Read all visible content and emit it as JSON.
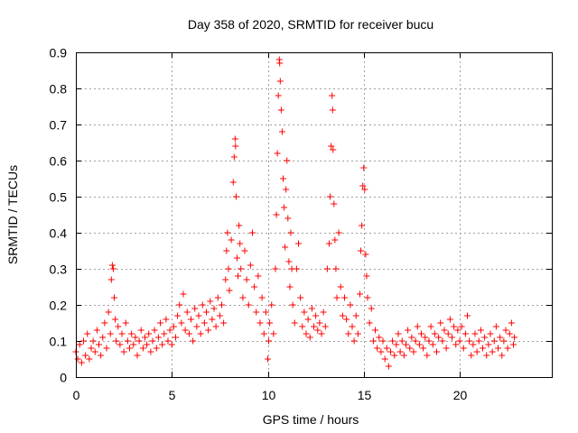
{
  "chart_data": {
    "type": "scatter",
    "title": "Day 358 of 2020, SRMTID for receiver bucu",
    "xlabel": "GPS time / hours",
    "ylabel": "SRMTID / TECUs",
    "xlim": [
      0,
      24.8
    ],
    "ylim": [
      0,
      0.9
    ],
    "xticks": [
      0,
      5,
      10,
      15,
      20
    ],
    "xtick_labels": [
      "0",
      "5",
      "10",
      "15",
      "20"
    ],
    "yticks": [
      0,
      0.1,
      0.2,
      0.3,
      0.4,
      0.5,
      0.6,
      0.7,
      0.8,
      0.9
    ],
    "ytick_labels": [
      "0",
      "0.1",
      "0.2",
      "0.3",
      "0.4",
      "0.5",
      "0.6",
      "0.7",
      "0.8",
      "0.9"
    ],
    "grid": true,
    "marker": "+",
    "color": "#ff0000",
    "series": [
      {
        "name": "SRMTID",
        "points": [
          [
            0.0,
            0.07
          ],
          [
            0.1,
            0.05
          ],
          [
            0.2,
            0.09
          ],
          [
            0.3,
            0.04
          ],
          [
            0.4,
            0.1
          ],
          [
            0.5,
            0.06
          ],
          [
            0.6,
            0.12
          ],
          [
            0.7,
            0.05
          ],
          [
            0.8,
            0.08
          ],
          [
            0.9,
            0.1
          ],
          [
            1.0,
            0.07
          ],
          [
            1.1,
            0.13
          ],
          [
            1.2,
            0.09
          ],
          [
            1.3,
            0.06
          ],
          [
            1.4,
            0.11
          ],
          [
            1.5,
            0.15
          ],
          [
            1.6,
            0.08
          ],
          [
            1.7,
            0.18
          ],
          [
            1.8,
            0.12
          ],
          [
            1.85,
            0.27
          ],
          [
            1.9,
            0.31
          ],
          [
            1.95,
            0.3
          ],
          [
            2.0,
            0.22
          ],
          [
            2.05,
            0.16
          ],
          [
            2.1,
            0.1
          ],
          [
            2.2,
            0.14
          ],
          [
            2.3,
            0.09
          ],
          [
            2.4,
            0.12
          ],
          [
            2.5,
            0.07
          ],
          [
            2.6,
            0.15
          ],
          [
            2.7,
            0.1
          ],
          [
            2.8,
            0.08
          ],
          [
            2.9,
            0.12
          ],
          [
            3.0,
            0.09
          ],
          [
            3.1,
            0.11
          ],
          [
            3.2,
            0.06
          ],
          [
            3.3,
            0.1
          ],
          [
            3.4,
            0.13
          ],
          [
            3.5,
            0.08
          ],
          [
            3.6,
            0.11
          ],
          [
            3.7,
            0.09
          ],
          [
            3.8,
            0.12
          ],
          [
            3.9,
            0.07
          ],
          [
            4.0,
            0.1
          ],
          [
            4.1,
            0.13
          ],
          [
            4.2,
            0.08
          ],
          [
            4.3,
            0.11
          ],
          [
            4.4,
            0.15
          ],
          [
            4.5,
            0.09
          ],
          [
            4.6,
            0.12
          ],
          [
            4.7,
            0.16
          ],
          [
            4.8,
            0.1
          ],
          [
            4.9,
            0.13
          ],
          [
            5.0,
            0.09
          ],
          [
            5.1,
            0.14
          ],
          [
            5.2,
            0.11
          ],
          [
            5.3,
            0.17
          ],
          [
            5.4,
            0.2
          ],
          [
            5.5,
            0.15
          ],
          [
            5.6,
            0.23
          ],
          [
            5.7,
            0.13
          ],
          [
            5.8,
            0.18
          ],
          [
            5.9,
            0.12
          ],
          [
            6.0,
            0.16
          ],
          [
            6.1,
            0.1
          ],
          [
            6.2,
            0.19
          ],
          [
            6.3,
            0.14
          ],
          [
            6.4,
            0.17
          ],
          [
            6.5,
            0.12
          ],
          [
            6.6,
            0.2
          ],
          [
            6.7,
            0.15
          ],
          [
            6.8,
            0.18
          ],
          [
            6.9,
            0.13
          ],
          [
            7.0,
            0.21
          ],
          [
            7.1,
            0.16
          ],
          [
            7.2,
            0.19
          ],
          [
            7.3,
            0.14
          ],
          [
            7.4,
            0.22
          ],
          [
            7.5,
            0.17
          ],
          [
            7.6,
            0.2
          ],
          [
            7.7,
            0.15
          ],
          [
            7.8,
            0.27
          ],
          [
            7.85,
            0.35
          ],
          [
            7.9,
            0.4
          ],
          [
            7.95,
            0.3
          ],
          [
            8.0,
            0.24
          ],
          [
            8.1,
            0.38
          ],
          [
            8.2,
            0.54
          ],
          [
            8.25,
            0.61
          ],
          [
            8.3,
            0.66
          ],
          [
            8.32,
            0.64
          ],
          [
            8.35,
            0.5
          ],
          [
            8.4,
            0.33
          ],
          [
            8.45,
            0.28
          ],
          [
            8.5,
            0.42
          ],
          [
            8.55,
            0.37
          ],
          [
            8.6,
            0.3
          ],
          [
            8.7,
            0.22
          ],
          [
            8.8,
            0.35
          ],
          [
            8.9,
            0.27
          ],
          [
            9.0,
            0.2
          ],
          [
            9.1,
            0.31
          ],
          [
            9.2,
            0.4
          ],
          [
            9.3,
            0.25
          ],
          [
            9.4,
            0.18
          ],
          [
            9.5,
            0.28
          ],
          [
            9.6,
            0.15
          ],
          [
            9.7,
            0.22
          ],
          [
            9.8,
            0.12
          ],
          [
            9.9,
            0.18
          ],
          [
            10.0,
            0.05
          ],
          [
            10.05,
            0.1
          ],
          [
            10.1,
            0.15
          ],
          [
            10.2,
            0.2
          ],
          [
            10.3,
            0.12
          ],
          [
            10.4,
            0.3
          ],
          [
            10.45,
            0.45
          ],
          [
            10.5,
            0.62
          ],
          [
            10.55,
            0.78
          ],
          [
            10.6,
            0.88
          ],
          [
            10.62,
            0.87
          ],
          [
            10.65,
            0.82
          ],
          [
            10.7,
            0.74
          ],
          [
            10.75,
            0.68
          ],
          [
            10.8,
            0.55
          ],
          [
            10.85,
            0.47
          ],
          [
            10.9,
            0.36
          ],
          [
            10.95,
            0.52
          ],
          [
            11.0,
            0.6
          ],
          [
            11.05,
            0.44
          ],
          [
            11.1,
            0.32
          ],
          [
            11.15,
            0.25
          ],
          [
            11.2,
            0.4
          ],
          [
            11.25,
            0.3
          ],
          [
            11.3,
            0.2
          ],
          [
            11.4,
            0.15
          ],
          [
            11.5,
            0.3
          ],
          [
            11.6,
            0.37
          ],
          [
            11.7,
            0.22
          ],
          [
            11.8,
            0.14
          ],
          [
            11.9,
            0.18
          ],
          [
            12.0,
            0.12
          ],
          [
            12.1,
            0.16
          ],
          [
            12.2,
            0.11
          ],
          [
            12.3,
            0.19
          ],
          [
            12.4,
            0.14
          ],
          [
            12.5,
            0.17
          ],
          [
            12.6,
            0.13
          ],
          [
            12.7,
            0.15
          ],
          [
            12.8,
            0.12
          ],
          [
            12.9,
            0.18
          ],
          [
            13.0,
            0.14
          ],
          [
            13.1,
            0.3
          ],
          [
            13.2,
            0.37
          ],
          [
            13.25,
            0.5
          ],
          [
            13.3,
            0.64
          ],
          [
            13.35,
            0.78
          ],
          [
            13.38,
            0.74
          ],
          [
            13.4,
            0.63
          ],
          [
            13.45,
            0.48
          ],
          [
            13.5,
            0.38
          ],
          [
            13.55,
            0.3
          ],
          [
            13.6,
            0.22
          ],
          [
            13.7,
            0.4
          ],
          [
            13.8,
            0.25
          ],
          [
            13.9,
            0.17
          ],
          [
            14.0,
            0.22
          ],
          [
            14.1,
            0.16
          ],
          [
            14.2,
            0.12
          ],
          [
            14.3,
            0.2
          ],
          [
            14.4,
            0.14
          ],
          [
            14.5,
            0.1
          ],
          [
            14.6,
            0.17
          ],
          [
            14.7,
            0.12
          ],
          [
            14.8,
            0.23
          ],
          [
            14.85,
            0.35
          ],
          [
            14.9,
            0.42
          ],
          [
            14.95,
            0.53
          ],
          [
            15.0,
            0.58
          ],
          [
            15.05,
            0.52
          ],
          [
            15.1,
            0.34
          ],
          [
            15.15,
            0.28
          ],
          [
            15.2,
            0.22
          ],
          [
            15.3,
            0.15
          ],
          [
            15.4,
            0.19
          ],
          [
            15.5,
            0.1
          ],
          [
            15.6,
            0.13
          ],
          [
            15.7,
            0.08
          ],
          [
            15.8,
            0.11
          ],
          [
            15.9,
            0.07
          ],
          [
            16.0,
            0.1
          ],
          [
            16.1,
            0.05
          ],
          [
            16.2,
            0.08
          ],
          [
            16.3,
            0.03
          ],
          [
            16.4,
            0.07
          ],
          [
            16.5,
            0.1
          ],
          [
            16.6,
            0.06
          ],
          [
            16.7,
            0.09
          ],
          [
            16.8,
            0.12
          ],
          [
            16.9,
            0.07
          ],
          [
            17.0,
            0.1
          ],
          [
            17.1,
            0.06
          ],
          [
            17.2,
            0.09
          ],
          [
            17.3,
            0.13
          ],
          [
            17.4,
            0.08
          ],
          [
            17.5,
            0.11
          ],
          [
            17.6,
            0.07
          ],
          [
            17.7,
            0.1
          ],
          [
            17.8,
            0.14
          ],
          [
            17.9,
            0.09
          ],
          [
            18.0,
            0.12
          ],
          [
            18.1,
            0.08
          ],
          [
            18.2,
            0.11
          ],
          [
            18.3,
            0.06
          ],
          [
            18.4,
            0.1
          ],
          [
            18.5,
            0.14
          ],
          [
            18.6,
            0.09
          ],
          [
            18.7,
            0.12
          ],
          [
            18.8,
            0.07
          ],
          [
            18.9,
            0.11
          ],
          [
            19.0,
            0.15
          ],
          [
            19.1,
            0.1
          ],
          [
            19.2,
            0.13
          ],
          [
            19.3,
            0.08
          ],
          [
            19.4,
            0.12
          ],
          [
            19.5,
            0.16
          ],
          [
            19.6,
            0.11
          ],
          [
            19.7,
            0.14
          ],
          [
            19.8,
            0.09
          ],
          [
            19.9,
            0.13
          ],
          [
            20.0,
            0.1
          ],
          [
            20.1,
            0.14
          ],
          [
            20.2,
            0.08
          ],
          [
            20.3,
            0.12
          ],
          [
            20.4,
            0.17
          ],
          [
            20.5,
            0.1
          ],
          [
            20.6,
            0.06
          ],
          [
            20.7,
            0.09
          ],
          [
            20.8,
            0.12
          ],
          [
            20.9,
            0.07
          ],
          [
            21.0,
            0.1
          ],
          [
            21.1,
            0.13
          ],
          [
            21.2,
            0.08
          ],
          [
            21.3,
            0.11
          ],
          [
            21.4,
            0.06
          ],
          [
            21.5,
            0.09
          ],
          [
            21.6,
            0.12
          ],
          [
            21.7,
            0.07
          ],
          [
            21.8,
            0.1
          ],
          [
            21.9,
            0.14
          ],
          [
            22.0,
            0.08
          ],
          [
            22.1,
            0.11
          ],
          [
            22.2,
            0.06
          ],
          [
            22.3,
            0.1
          ],
          [
            22.4,
            0.13
          ],
          [
            22.5,
            0.08
          ],
          [
            22.6,
            0.12
          ],
          [
            22.7,
            0.15
          ],
          [
            22.8,
            0.09
          ],
          [
            22.85,
            0.11
          ]
        ]
      }
    ]
  }
}
